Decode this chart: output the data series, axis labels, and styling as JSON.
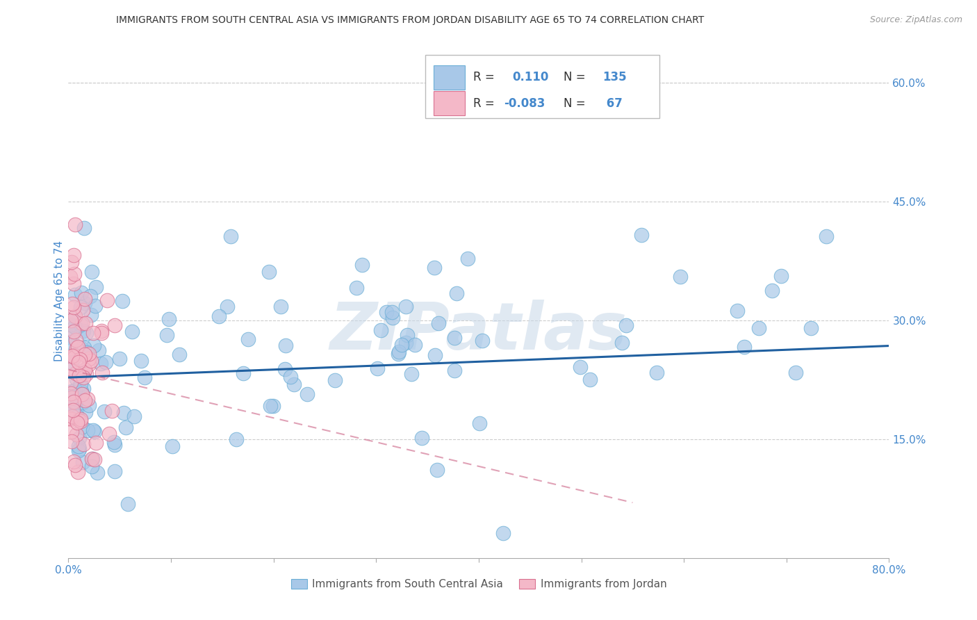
{
  "title": "IMMIGRANTS FROM SOUTH CENTRAL ASIA VS IMMIGRANTS FROM JORDAN DISABILITY AGE 65 TO 74 CORRELATION CHART",
  "source": "Source: ZipAtlas.com",
  "ylabel": "Disability Age 65 to 74",
  "xlim": [
    0.0,
    0.8
  ],
  "ylim": [
    0.0,
    0.65
  ],
  "xtick_positions": [
    0.0,
    0.1,
    0.2,
    0.3,
    0.4,
    0.5,
    0.6,
    0.7,
    0.8
  ],
  "xtick_labels_show": {
    "0.0": "0.0%",
    "0.8": "80.0%"
  },
  "yticks_right": [
    0.15,
    0.3,
    0.45,
    0.6
  ],
  "ytick_labels_right": [
    "15.0%",
    "30.0%",
    "45.0%",
    "60.0%"
  ],
  "blue_color": "#a8c8e8",
  "blue_edge_color": "#6baed6",
  "pink_color": "#f4b8c8",
  "pink_edge_color": "#d97090",
  "blue_line_color": "#2060a0",
  "pink_line_color": "#d07090",
  "R_blue": 0.11,
  "N_blue": 135,
  "R_pink": -0.083,
  "N_pink": 67,
  "legend_label_blue": "Immigrants from South Central Asia",
  "legend_label_pink": "Immigrants from Jordan",
  "watermark": "ZIPatlas",
  "background_color": "#ffffff",
  "grid_color": "#cccccc",
  "title_color": "#333333",
  "axis_label_color": "#4488cc",
  "tick_label_color": "#4488cc",
  "blue_trend_start_y": 0.228,
  "blue_trend_end_y": 0.268,
  "pink_trend_start_x": 0.0,
  "pink_trend_start_y": 0.238,
  "pink_trend_end_x": 0.55,
  "pink_trend_end_y": 0.07
}
